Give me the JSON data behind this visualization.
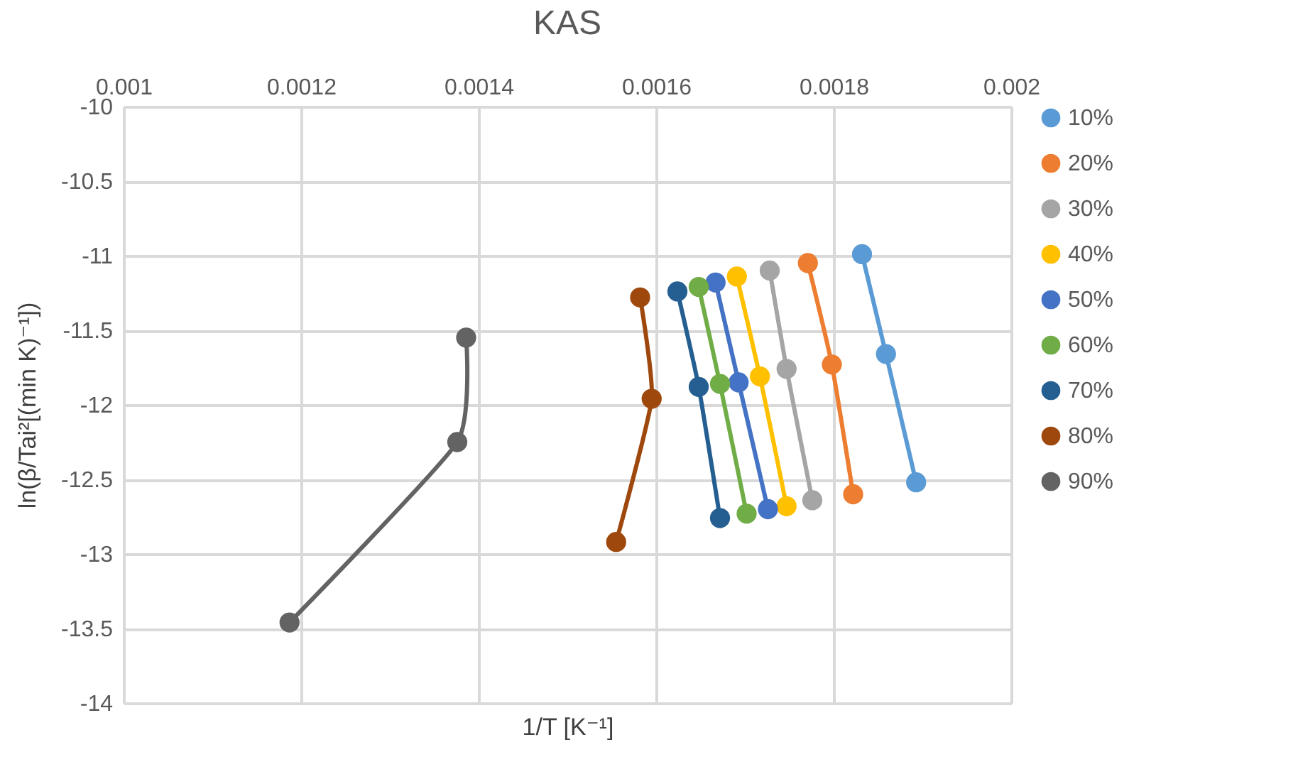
{
  "chart_data": {
    "type": "line",
    "title": "KAS",
    "xlabel": "1/T [K⁻¹]",
    "ylabel": "ln(β/Tai²[(min K)⁻¹])",
    "xlim": [
      0.001,
      0.002
    ],
    "xticks": [
      0.001,
      0.0012,
      0.0014,
      0.0016,
      0.0018,
      0.002
    ],
    "ylim": [
      -14,
      -10
    ],
    "yticks": [
      -14,
      -13.5,
      -13,
      -12.5,
      -12,
      -11.5,
      -11,
      -10.5,
      -10
    ],
    "grid": true,
    "legend": "right",
    "marker": "circle",
    "line_style": "solid",
    "series": [
      {
        "name": "10%",
        "color": "#5b9bd5",
        "x": [
          0.001832,
          0.001859,
          0.001893
        ],
        "values": [
          -10.99,
          -11.66,
          -12.52
        ]
      },
      {
        "name": "20%",
        "color": "#ed7d31",
        "x": [
          0.001771,
          0.001798,
          0.001822
        ],
        "values": [
          -11.05,
          -11.73,
          -12.6
        ]
      },
      {
        "name": "30%",
        "color": "#a5a5a5",
        "x": [
          0.001728,
          0.001747,
          0.001776
        ],
        "values": [
          -11.1,
          -11.76,
          -12.64
        ]
      },
      {
        "name": "40%",
        "color": "#ffc000",
        "x": [
          0.001691,
          0.001717,
          0.001747
        ],
        "values": [
          -11.14,
          -11.81,
          -12.68
        ]
      },
      {
        "name": "50%",
        "color": "#4472c4",
        "x": [
          0.001667,
          0.001693,
          0.001726
        ],
        "values": [
          -11.18,
          -11.85,
          -12.7
        ]
      },
      {
        "name": "60%",
        "color": "#70ad47",
        "x": [
          0.001648,
          0.001672,
          0.001702
        ],
        "values": [
          -11.21,
          -11.86,
          -12.73
        ]
      },
      {
        "name": "70%",
        "color": "#255e91",
        "x": [
          0.001624,
          0.001648,
          0.001672
        ],
        "values": [
          -11.24,
          -11.88,
          -12.76
        ]
      },
      {
        "name": "80%",
        "color": "#9e480e",
        "x": [
          0.001582,
          0.001595,
          0.001555
        ],
        "values": [
          -11.28,
          -11.96,
          -12.92
        ]
      },
      {
        "name": "90%",
        "color": "#636363",
        "x": [
          0.001386,
          0.001376,
          0.001187
        ],
        "values": [
          -11.55,
          -12.25,
          -13.46
        ]
      }
    ]
  }
}
